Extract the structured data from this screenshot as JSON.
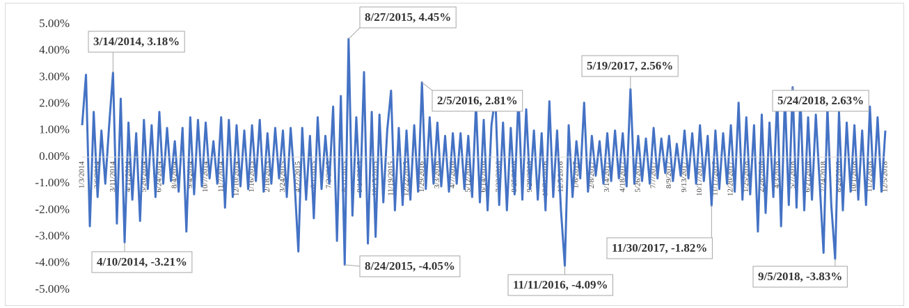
{
  "chart_data": {
    "type": "line",
    "categories": [
      "1/3/2014",
      null,
      null,
      null,
      "2/6/2014",
      null,
      null,
      null,
      "3/11/2014",
      null,
      null,
      null,
      "4/11/2014",
      null,
      null,
      null,
      "5/20/2014",
      null,
      null,
      null,
      "6/24/2014",
      null,
      null,
      null,
      "8/4/2014",
      null,
      null,
      null,
      "9/4/2014",
      null,
      null,
      null,
      "10/7/2014",
      null,
      null,
      null,
      "11/7/2014",
      null,
      null,
      null,
      "12/10/2014",
      null,
      null,
      null,
      "1/16/2015",
      null,
      null,
      null,
      "2/18/2015",
      null,
      null,
      null,
      "3/24/2015",
      null,
      null,
      null,
      "4/27/2015",
      null,
      null,
      null,
      "6/1/2015",
      null,
      null,
      null,
      "7/3/2015",
      null,
      null,
      null,
      "8/11/2015",
      null,
      null,
      null,
      "9/14/2015",
      null,
      null,
      null,
      "10/15/2015",
      null,
      null,
      null,
      "11/19/2015",
      null,
      null,
      null,
      "12/22/2015",
      null,
      null,
      null,
      "1/29/2016",
      null,
      null,
      null,
      "3/3/2016",
      null,
      null,
      null,
      "4/7/2016",
      null,
      null,
      null,
      "5/12/2016",
      null,
      null,
      null,
      "6/14/2016",
      null,
      null,
      null,
      "7/22/2016",
      null,
      null,
      null,
      "8/25/2016",
      null,
      null,
      null,
      "9/28/2016",
      null,
      null,
      null,
      "10/31/2016",
      null,
      null,
      null,
      "12/5/2016",
      null,
      null,
      null,
      "1/6/2017",
      null,
      null,
      null,
      "2/8/2017",
      null,
      null,
      null,
      "3/14/2017",
      null,
      null,
      null,
      "4/18/2017",
      null,
      null,
      null,
      "5/26/2017",
      null,
      null,
      null,
      "7/7/2017",
      null,
      null,
      null,
      "8/9/2017",
      null,
      null,
      null,
      "9/13/2017",
      null,
      null,
      null,
      "10/17/2017",
      null,
      null,
      null,
      "11/17/2017",
      null,
      null,
      null,
      "12/20/2017",
      null,
      null,
      null,
      "1/25/2018",
      null,
      null,
      null,
      "2/28/2018",
      null,
      null,
      null,
      "4/3/2018",
      null,
      null,
      null,
      "5/7/2018",
      null,
      null,
      null,
      "6/21/2018",
      null,
      null,
      null,
      "7/24/2018",
      null,
      null,
      null,
      "8/28/2018",
      null,
      null,
      null,
      "10/1/2018",
      null,
      null,
      null,
      "11/2/2018",
      null,
      null,
      null,
      "12/5/2018"
    ],
    "series": [
      {
        "color": "#4472c4",
        "values": [
          1.2,
          3.1,
          -2.6,
          1.7,
          -1.5,
          1.0,
          -1.0,
          1.2,
          3.18,
          -2.5,
          2.2,
          -3.21,
          1.3,
          -1.6,
          0.9,
          -2.4,
          1.4,
          -1.2,
          1.2,
          -1.5,
          1.7,
          -1.0,
          1.1,
          -0.9,
          0.6,
          -1.3,
          1.1,
          -2.8,
          1.5,
          -1.4,
          1.4,
          -1.1,
          1.3,
          -0.8,
          0.6,
          -1.0,
          1.5,
          -1.9,
          1.4,
          -1.5,
          1.2,
          -1.1,
          1.0,
          -1.2,
          1.2,
          -0.9,
          1.4,
          -1.3,
          0.9,
          -1.0,
          1.1,
          -0.8,
          1.0,
          -1.5,
          1.1,
          -0.9,
          -3.55,
          1.1,
          -1.6,
          0.8,
          -2.3,
          1.5,
          -1.2,
          0.8,
          -1.0,
          1.9,
          -3.15,
          2.3,
          -4.05,
          4.45,
          -2.2,
          1.5,
          -1.5,
          3.2,
          -3.25,
          1.7,
          -3.0,
          1.6,
          -1.7,
          1.0,
          2.5,
          -2.0,
          1.1,
          -1.8,
          1.0,
          -1.6,
          1.2,
          -1.3,
          2.81,
          -1.2,
          1.5,
          -1.0,
          1.3,
          -1.1,
          0.8,
          -1.3,
          0.9,
          -1.0,
          0.9,
          -1.2,
          0.8,
          -1.5,
          2.0,
          -1.7,
          1.4,
          -2.0,
          1.2,
          2.3,
          -1.8,
          1.3,
          -2.0,
          1.1,
          -1.4,
          2.3,
          -1.6,
          1.8,
          -1.2,
          1.0,
          -1.6,
          0.9,
          -2.0,
          2.1,
          -1.5,
          1.0,
          -2.0,
          -4.09,
          1.2,
          -1.5,
          0.6,
          -0.8,
          2.05,
          -1.3,
          0.8,
          -0.7,
          0.6,
          -1.0,
          0.9,
          -0.9,
          1.0,
          -0.8,
          0.9,
          -1.1,
          2.56,
          -1.0,
          0.8,
          -0.9,
          0.7,
          -1.0,
          1.1,
          -0.8,
          0.7,
          -0.6,
          0.8,
          -0.9,
          0.5,
          -0.7,
          1.0,
          -0.8,
          0.9,
          -1.0,
          1.2,
          -0.9,
          0.8,
          -1.82,
          1.0,
          -1.2,
          0.9,
          -1.0,
          1.2,
          -1.3,
          2.05,
          -1.6,
          1.5,
          -1.4,
          1.2,
          -2.8,
          1.6,
          -2.1,
          1.3,
          -1.5,
          2.3,
          -2.6,
          2.3,
          -1.8,
          2.63,
          -1.9,
          2.3,
          -2.0,
          1.5,
          -1.6,
          1.6,
          -1.0,
          -3.6,
          1.9,
          -1.8,
          -3.83,
          1.7,
          -2.0,
          1.3,
          -1.3,
          1.2,
          -1.6,
          1.0,
          -1.8,
          1.9,
          -1.2,
          1.5,
          -1.3,
          1.0
        ]
      }
    ],
    "ylim": [
      -5,
      5
    ],
    "yticks": [
      {
        "value": 5,
        "label": "5.00%"
      },
      {
        "value": 4,
        "label": "4.00%"
      },
      {
        "value": 3,
        "label": "3.00%"
      },
      {
        "value": 2,
        "label": "2.00%"
      },
      {
        "value": 1,
        "label": "1.00%"
      },
      {
        "value": 0,
        "label": "0.00%"
      },
      {
        "value": -1,
        "label": "-1.00%"
      },
      {
        "value": -2,
        "label": "-2.00%"
      },
      {
        "value": -3,
        "label": "-3.00%"
      },
      {
        "value": -4,
        "label": "-4.00%"
      },
      {
        "value": -5,
        "label": "-5.00%"
      }
    ],
    "grid": false,
    "annotations": [
      {
        "text": "3/14/2014, 3.18%",
        "value": 3.18
      },
      {
        "text": "4/10/2014, -3.21%",
        "value": -3.21
      },
      {
        "text": "8/27/2015, 4.45%",
        "value": 4.45
      },
      {
        "text": "8/24/2015, -4.05%",
        "value": -4.05
      },
      {
        "text": "2/5/2016, 2.81%",
        "value": 2.81
      },
      {
        "text": "11/11/2016, -4.09%",
        "value": -4.09
      },
      {
        "text": "5/19/2017, 2.56%",
        "value": 2.56
      },
      {
        "text": "11/30/2017, -1.82%",
        "value": -1.82
      },
      {
        "text": "5/24/2018, 2.63%",
        "value": 2.63
      },
      {
        "text": "9/5/2018, -3.83%",
        "value": -3.83
      }
    ]
  }
}
